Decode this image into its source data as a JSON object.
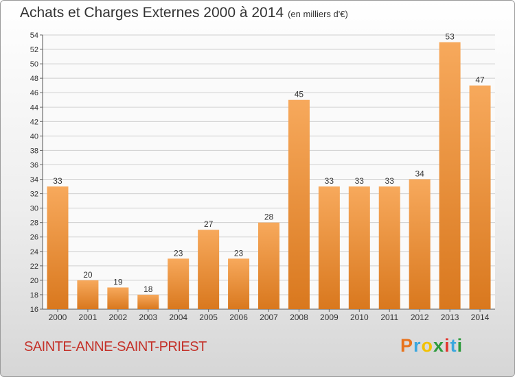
{
  "header": {
    "title": "Achats et Charges Externes 2000 à 2014",
    "subtitle": "(en milliers d'€)"
  },
  "footer": {
    "commune": "SAINTE-ANNE-SAINT-PRIEST",
    "logo": "Proxiti",
    "logo_colors": [
      "#e8731c",
      "#3aa7df",
      "#f2c100",
      "#2e9b3d",
      "#e2362f",
      "#3aa7df",
      "#2e9b3d"
    ]
  },
  "colors": {
    "bar_light": "#f7a95c",
    "bar_dark": "#d9781e",
    "grid": "#cfcfcf",
    "commune": "#c4322a"
  },
  "chart_data": {
    "type": "bar",
    "title": "Achats et Charges Externes 2000 à 2014",
    "subtitle": "(en milliers d'€)",
    "categories": [
      "2000",
      "2001",
      "2002",
      "2003",
      "2004",
      "2005",
      "2006",
      "2007",
      "2008",
      "2009",
      "2010",
      "2011",
      "2012",
      "2013",
      "2014"
    ],
    "values": [
      33,
      20,
      19,
      18,
      23,
      27,
      23,
      28,
      45,
      33,
      33,
      33,
      34,
      53,
      47
    ],
    "ylim": [
      16,
      54
    ],
    "yticks": [
      16,
      18,
      20,
      22,
      24,
      26,
      28,
      30,
      32,
      34,
      36,
      38,
      40,
      42,
      44,
      46,
      48,
      50,
      52,
      54
    ],
    "xlabel": "",
    "ylabel": "",
    "grid": true,
    "data_labels": true
  }
}
